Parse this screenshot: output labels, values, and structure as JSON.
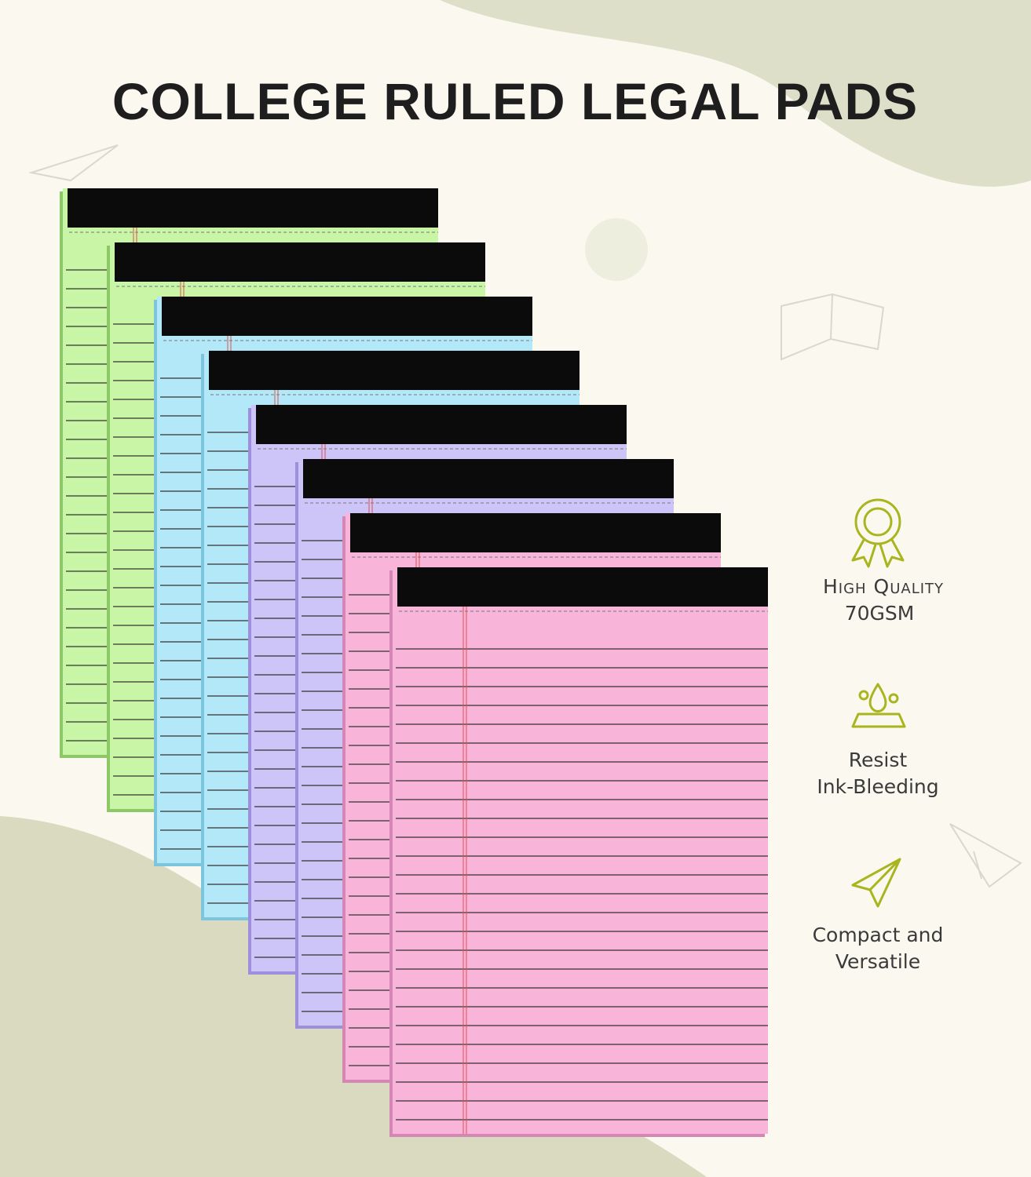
{
  "header": {
    "title": "COLLEGE RULED LEGAL PADS"
  },
  "features": [
    {
      "lines": [
        "High Quality",
        "70GSM"
      ]
    },
    {
      "lines": [
        "Resist",
        "Ink-Bleeding"
      ]
    },
    {
      "lines": [
        "Compact and",
        "Versatile"
      ]
    }
  ]
}
